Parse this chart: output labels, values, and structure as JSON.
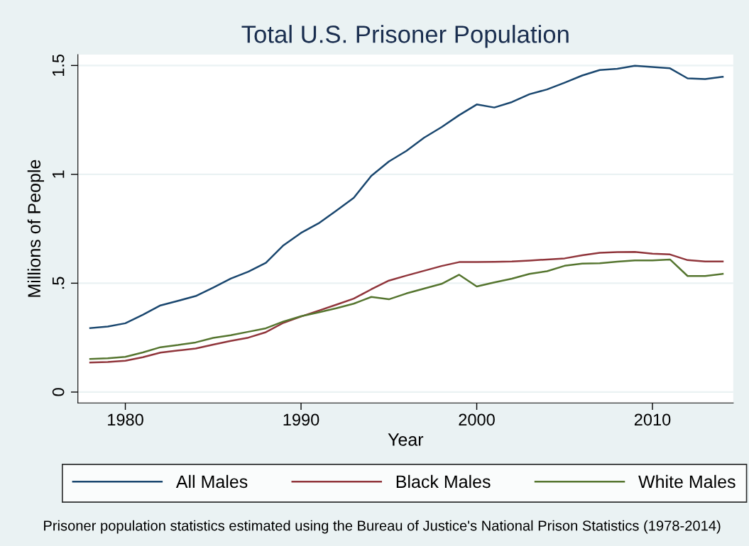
{
  "chart_data": {
    "type": "line",
    "title": "Total U.S. Prisoner Population",
    "xlabel": "Year",
    "ylabel": "Millions of People",
    "x": [
      1978,
      1979,
      1980,
      1981,
      1982,
      1983,
      1984,
      1985,
      1986,
      1987,
      1988,
      1989,
      1990,
      1991,
      1992,
      1993,
      1994,
      1995,
      1996,
      1997,
      1998,
      1999,
      2000,
      2001,
      2002,
      2003,
      2004,
      2005,
      2006,
      2007,
      2008,
      2009,
      2010,
      2011,
      2012,
      2013,
      2014
    ],
    "series": [
      {
        "name": "All Males",
        "color": "#1a476f",
        "values": [
          0.294,
          0.301,
          0.316,
          0.355,
          0.398,
          0.419,
          0.441,
          0.48,
          0.521,
          0.553,
          0.594,
          0.674,
          0.731,
          0.775,
          0.833,
          0.892,
          0.993,
          1.059,
          1.108,
          1.168,
          1.217,
          1.272,
          1.321,
          1.307,
          1.332,
          1.368,
          1.39,
          1.421,
          1.454,
          1.479,
          1.485,
          1.499,
          1.493,
          1.487,
          1.441,
          1.438,
          1.448
        ]
      },
      {
        "name": "Black Males",
        "color": "#90353b",
        "values": [
          0.136,
          0.138,
          0.144,
          0.16,
          0.181,
          0.191,
          0.2,
          0.218,
          0.235,
          0.25,
          0.275,
          0.318,
          0.347,
          0.374,
          0.401,
          0.429,
          0.472,
          0.512,
          0.535,
          0.557,
          0.579,
          0.597,
          0.597,
          0.598,
          0.6,
          0.604,
          0.609,
          0.614,
          0.628,
          0.64,
          0.643,
          0.644,
          0.636,
          0.632,
          0.606,
          0.6,
          0.6
        ]
      },
      {
        "name": "White Males",
        "color": "#55752f",
        "values": [
          0.152,
          0.155,
          0.162,
          0.182,
          0.206,
          0.216,
          0.228,
          0.249,
          0.261,
          0.277,
          0.293,
          0.324,
          0.348,
          0.366,
          0.385,
          0.406,
          0.437,
          0.426,
          0.453,
          0.475,
          0.497,
          0.539,
          0.485,
          0.504,
          0.521,
          0.543,
          0.555,
          0.58,
          0.59,
          0.592,
          0.599,
          0.605,
          0.605,
          0.609,
          0.533,
          0.533,
          0.543
        ]
      }
    ],
    "xlim": [
      1977.3,
      2014.6
    ],
    "xticks": [
      1980,
      1990,
      2000,
      2010
    ],
    "ylim": [
      -0.05,
      1.55
    ],
    "yticks": [
      0,
      {
        "value": 0.5,
        "label": ".5"
      },
      1,
      1.5
    ],
    "grid": "y",
    "legend": "bottom",
    "marker": "none",
    "line_style": "solid",
    "annotations": [
      "Prisoner population statistics estimated using the Bureau of Justice's National Prison Statistics (1978-2014)"
    ]
  }
}
